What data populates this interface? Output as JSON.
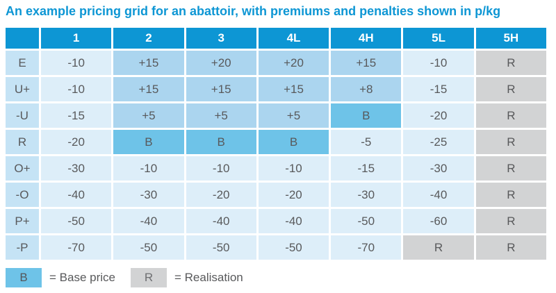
{
  "title": "An example pricing grid for an abattoir, with premiums and penalties shown in p/kg",
  "colors": {
    "title_blue": "#0d96d4",
    "header_blue": "#0d96d4",
    "row_label_blue": "#c5e3f5",
    "light_cell_blue": "#ddeef9",
    "premium_cell_blue": "#abd5ef",
    "base_price_blue": "#6ec3e8",
    "realisation_grey": "#d2d3d4",
    "cell_text_grey": "#58595b"
  },
  "chart_data": {
    "type": "table",
    "title": "An example pricing grid for an abattoir, with premiums and penalties shown in p/kg",
    "unit": "p/kg",
    "columns": [
      "",
      "1",
      "2",
      "3",
      "4L",
      "4H",
      "5L",
      "5H"
    ],
    "rows": [
      {
        "label": "E",
        "values": [
          "-10",
          "+15",
          "+20",
          "+20",
          "+15",
          "-10",
          "R"
        ]
      },
      {
        "label": "U+",
        "values": [
          "-10",
          "+15",
          "+15",
          "+15",
          "+8",
          "-15",
          "R"
        ]
      },
      {
        "label": "-U",
        "values": [
          "-15",
          "+5",
          "+5",
          "+5",
          "B",
          "-20",
          "R"
        ]
      },
      {
        "label": "R",
        "values": [
          "-20",
          "B",
          "B",
          "B",
          "-5",
          "-25",
          "R"
        ]
      },
      {
        "label": "O+",
        "values": [
          "-30",
          "-10",
          "-10",
          "-10",
          "-15",
          "-30",
          "R"
        ]
      },
      {
        "label": "-O",
        "values": [
          "-40",
          "-30",
          "-20",
          "-20",
          "-30",
          "-40",
          "R"
        ]
      },
      {
        "label": "P+",
        "values": [
          "-50",
          "-40",
          "-40",
          "-40",
          "-50",
          "-60",
          "R"
        ]
      },
      {
        "label": "-P",
        "values": [
          "-70",
          "-50",
          "-50",
          "-50",
          "-70",
          "R",
          "R"
        ]
      }
    ],
    "cell_legend": {
      "B": "Base price",
      "R": "Realisation"
    }
  },
  "legend": {
    "base": {
      "symbol": "B",
      "label": "= Base price"
    },
    "realisation": {
      "symbol": "R",
      "label": "= Realisation"
    }
  }
}
